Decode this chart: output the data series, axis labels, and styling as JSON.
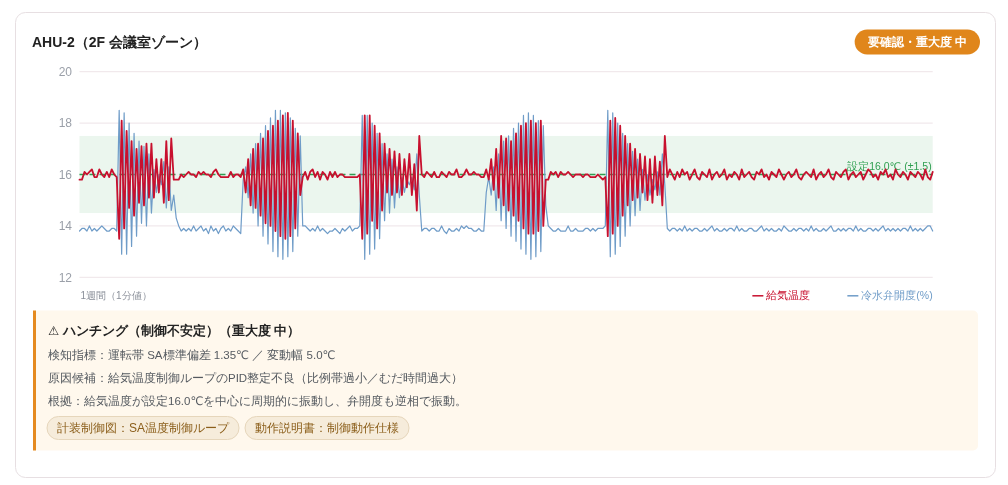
{
  "chart_data": {
    "type": "line",
    "title": "AHU-2（2F 会議室ゾーン）",
    "xlabel": "1週間（1分値）",
    "categories": [
      null,
      null,
      null,
      null,
      null,
      null,
      null,
      null,
      null,
      null,
      null,
      null,
      null,
      null,
      null,
      null,
      null,
      null,
      null,
      null,
      null,
      null,
      null,
      null,
      null,
      null,
      null,
      null,
      null,
      null,
      null,
      null,
      null,
      null,
      null,
      null,
      null,
      null,
      null,
      null,
      null,
      null,
      null,
      null,
      null,
      null,
      null,
      null,
      null,
      null,
      null,
      null,
      null,
      null,
      null,
      null,
      null,
      null,
      null,
      null,
      null,
      null,
      null,
      null,
      null,
      null,
      null,
      null,
      null,
      null,
      null,
      null,
      null,
      null,
      null,
      null,
      null,
      null,
      null,
      null,
      null,
      null,
      null,
      null,
      null,
      null,
      null,
      null,
      null,
      null,
      null,
      null,
      null,
      null,
      null,
      null,
      null,
      null,
      null,
      null,
      null,
      null,
      null,
      null,
      null,
      null,
      null,
      null,
      null,
      null,
      null,
      null,
      null,
      null,
      null,
      null,
      null,
      null,
      null,
      null,
      null,
      null,
      null,
      null,
      null,
      null,
      null,
      null,
      null,
      null,
      null,
      null,
      null,
      null,
      null,
      null,
      null,
      null,
      null,
      null,
      null,
      null,
      null,
      null,
      null,
      null,
      null,
      null,
      null,
      null,
      null,
      null,
      null,
      null,
      null,
      null,
      null,
      null,
      null,
      null,
      null,
      null,
      null,
      null,
      null,
      null,
      null,
      null,
      null,
      null,
      null,
      null,
      null,
      null,
      null,
      null,
      null,
      null,
      null,
      null,
      null,
      null,
      null,
      null,
      null,
      null,
      null,
      null,
      null,
      null,
      null,
      null,
      null,
      null,
      null,
      null,
      null,
      null,
      null,
      null,
      null,
      null,
      null,
      null,
      null,
      null,
      null,
      null,
      null,
      null,
      null,
      null,
      null,
      null,
      null,
      null,
      null,
      null,
      null,
      null,
      null,
      null,
      null,
      null,
      null,
      null,
      null,
      null,
      null,
      null,
      null,
      null,
      null,
      null,
      null,
      null,
      null,
      null,
      null,
      null,
      null,
      null,
      null,
      null,
      null,
      null,
      null,
      null,
      null,
      null,
      null,
      null,
      null,
      null,
      null,
      null,
      null,
      null,
      null,
      null,
      null,
      null,
      null,
      null,
      null,
      null,
      null,
      null,
      null,
      null,
      null,
      null,
      null,
      null,
      null,
      null,
      null,
      null,
      null,
      null,
      null,
      null,
      null,
      null,
      null,
      null,
      null,
      null,
      null,
      null,
      null,
      null,
      null,
      null,
      null,
      null,
      null,
      null,
      null,
      null,
      null,
      null,
      null,
      null,
      null,
      null,
      null,
      null,
      null,
      null,
      null,
      null,
      null,
      null,
      null,
      null,
      null,
      null,
      null,
      null,
      null,
      null,
      null,
      null,
      null,
      null,
      null,
      null,
      null,
      null,
      null,
      null,
      null,
      null,
      null,
      null,
      null,
      null,
      null,
      null,
      null,
      null,
      null,
      null,
      null
    ],
    "series": [
      {
        "name": "給気温度",
        "color": "#c8102e",
        "values": [
          15.8,
          15.8,
          16.1,
          16.0,
          16.1,
          16.2,
          15.9,
          15.9,
          16.2,
          16.0,
          15.9,
          16.1,
          15.9,
          16.2,
          16.0,
          15.9,
          13.5,
          18.1,
          13.9,
          17.7,
          14.7,
          17.3,
          14.4,
          17.0,
          14.9,
          17.1,
          14.8,
          17.2,
          15.1,
          17.2,
          15.1,
          16.6,
          15.3,
          16.6,
          14.9,
          17.3,
          15.0,
          17.4,
          15.8,
          15.8,
          15.8,
          16.0,
          15.9,
          16.0,
          16.1,
          16.0,
          16.0,
          15.9,
          16.1,
          16.0,
          16.1,
          16.0,
          16.0,
          15.9,
          16.1,
          16.2,
          16.0,
          15.9,
          15.9,
          15.9,
          15.9,
          16.1,
          15.9,
          16.0,
          16.0,
          15.9,
          16.2,
          15.3,
          16.6,
          14.8,
          17.0,
          14.7,
          17.2,
          14.4,
          17.4,
          14.1,
          17.7,
          14.0,
          17.9,
          13.8,
          18.1,
          13.6,
          18.3,
          13.5,
          18.4,
          13.6,
          18.1,
          13.9,
          17.6,
          15.2,
          15.9,
          16.1,
          15.8,
          16.1,
          16.2,
          15.9,
          16.1,
          15.8,
          16.1,
          16.0,
          15.8,
          16.1,
          15.9,
          16.1,
          15.9,
          16.0,
          16.0,
          15.9,
          15.9,
          15.9,
          15.9,
          15.9,
          15.9,
          16.0,
          13.5,
          18.3,
          13.7,
          18.3,
          14.2,
          17.9,
          13.9,
          17.6,
          14.6,
          17.2,
          15.3,
          17.0,
          15.2,
          16.9,
          15.3,
          16.8,
          15.2,
          16.6,
          15.5,
          16.8,
          15.2,
          16.4,
          14.6,
          17.5,
          16.0,
          15.9,
          16.1,
          16.0,
          15.9,
          16.1,
          15.9,
          15.9,
          16.1,
          16.0,
          15.9,
          16.1,
          16.0,
          16.0,
          16.2,
          15.9,
          15.9,
          16.0,
          16.2,
          16.0,
          16.0,
          16.1,
          16.0,
          16.0,
          15.9,
          15.9,
          16.2,
          15.8,
          16.6,
          15.4,
          17.0,
          15.1,
          17.5,
          14.8,
          17.4,
          14.6,
          17.3,
          14.4,
          17.6,
          14.2,
          17.9,
          13.9,
          18.0,
          13.7,
          18.1,
          13.7,
          18.0,
          13.8,
          18.1,
          14.0,
          15.8,
          15.8,
          16.1,
          16.0,
          16.1,
          15.9,
          16.1,
          16.0,
          16.0,
          16.1,
          16.0,
          15.9,
          16.0,
          16.0,
          16.0,
          15.9,
          16.0,
          16.0,
          15.9,
          15.9,
          15.9,
          16.0,
          15.9,
          15.8,
          15.9,
          13.6,
          18.1,
          13.7,
          18.2,
          14.0,
          17.9,
          14.4,
          17.5,
          14.8,
          17.2,
          15.0,
          17.0,
          15.1,
          16.8,
          15.3,
          16.7,
          15.0,
          16.6,
          14.9,
          16.7,
          15.2,
          16.5,
          14.8,
          17.5,
          15.9,
          16.2,
          16.0,
          15.8,
          16.1,
          15.9,
          16.2,
          16.0,
          16.1,
          15.8,
          16.0,
          16.2,
          15.9,
          15.8,
          16.1,
          16.0,
          15.9,
          16.2,
          15.8,
          16.0,
          16.1,
          15.9,
          16.0,
          16.2,
          15.8,
          16.0,
          15.9,
          16.1,
          16.0,
          15.8,
          16.2,
          15.9,
          16.0,
          16.1,
          15.9,
          15.8,
          16.1,
          16.0,
          16.2,
          15.9,
          16.0,
          15.8,
          16.1,
          16.0,
          15.9,
          16.2,
          16.0,
          15.8,
          16.0,
          16.1,
          15.9,
          16.0,
          16.2,
          15.9,
          15.8,
          16.0,
          16.1,
          16.0,
          15.9,
          16.2,
          15.8,
          16.0,
          16.1,
          15.9,
          16.0,
          16.2,
          15.9,
          15.8,
          16.1,
          16.0,
          15.9,
          16.1,
          16.2,
          15.8,
          16.0,
          16.1,
          15.9,
          16.0,
          16.1,
          15.8,
          16.0,
          16.2,
          16.1,
          15.9,
          16.0,
          15.8,
          16.1,
          16.0,
          16.2,
          15.9,
          16.0,
          15.8,
          16.2,
          16.0,
          15.9,
          16.1,
          16.0,
          15.8,
          16.1,
          16.0,
          15.9,
          16.1,
          16.0,
          15.8,
          16.2,
          15.9,
          15.8,
          16.1
        ]
      },
      {
        "name": "冷水弁開度(%)",
        "color": "#6f9cc8",
        "values": [
          13.8,
          13.9,
          13.9,
          13.8,
          14.0,
          13.8,
          13.9,
          13.8,
          13.9,
          14.0,
          13.9,
          13.8,
          13.8,
          13.9,
          13.9,
          13.8,
          18.5,
          12.9,
          18.4,
          12.9,
          18.0,
          13.2,
          17.6,
          13.6,
          17.3,
          14.1,
          17.1,
          14.0,
          16.8,
          14.5,
          16.2,
          15.3,
          16.0,
          15.6,
          16.5,
          14.7,
          16.3,
          14.6,
          15.2,
          14.3,
          14.0,
          13.8,
          13.9,
          13.8,
          13.9,
          13.8,
          14.0,
          13.8,
          13.9,
          14.0,
          13.8,
          13.9,
          13.7,
          14.0,
          13.8,
          13.9,
          13.7,
          13.9,
          14.0,
          13.8,
          13.9,
          13.8,
          14.0,
          13.9,
          13.8,
          13.7,
          15.8,
          16.3,
          15.1,
          16.8,
          14.5,
          17.2,
          14.0,
          17.6,
          13.6,
          17.9,
          13.3,
          18.2,
          13.0,
          18.5,
          12.8,
          18.5,
          12.7,
          18.4,
          12.8,
          18.2,
          13.0,
          17.8,
          13.6,
          17.5,
          14.0,
          14.0,
          13.9,
          13.8,
          13.9,
          13.8,
          14.0,
          13.8,
          13.9,
          13.8,
          13.7,
          13.8,
          13.8,
          13.9,
          13.8,
          13.7,
          13.9,
          13.8,
          13.9,
          14.0,
          13.8,
          13.9,
          13.9,
          14.0,
          18.3,
          12.7,
          18.3,
          12.9,
          18.0,
          13.1,
          17.6,
          13.5,
          17.2,
          14.2,
          16.8,
          14.5,
          16.6,
          14.7,
          16.3,
          15.1,
          15.9,
          15.3,
          15.8,
          15.6,
          15.9,
          15.4,
          16.8,
          15.2,
          13.8,
          13.9,
          13.9,
          13.8,
          13.9,
          13.9,
          13.8,
          13.8,
          14.0,
          13.8,
          13.7,
          13.9,
          13.8,
          13.8,
          13.9,
          13.8,
          14.0,
          13.9,
          14.0,
          13.9,
          13.9,
          13.8,
          13.8,
          13.9,
          13.8,
          13.8,
          15.3,
          15.9,
          15.2,
          16.3,
          14.6,
          16.8,
          14.2,
          17.3,
          13.9,
          17.5,
          13.6,
          17.8,
          13.4,
          18.0,
          13.1,
          18.3,
          12.9,
          18.4,
          12.7,
          18.3,
          12.8,
          18.1,
          13.0,
          17.9,
          14.8,
          14.0,
          13.9,
          13.8,
          13.8,
          13.9,
          13.8,
          13.8,
          13.8,
          14.0,
          13.8,
          13.8,
          13.9,
          13.8,
          13.8,
          13.8,
          13.9,
          13.9,
          13.8,
          13.9,
          13.8,
          13.9,
          13.9,
          13.9,
          14.0,
          18.5,
          12.8,
          18.4,
          12.9,
          18.0,
          13.2,
          17.6,
          13.6,
          17.2,
          14.0,
          16.9,
          14.4,
          16.6,
          14.6,
          16.2,
          15.0,
          16.0,
          15.2,
          15.8,
          15.4,
          16.1,
          15.2,
          16.8,
          15.6,
          13.9,
          13.8,
          13.9,
          13.9,
          13.8,
          13.9,
          13.8,
          14.0,
          13.8,
          13.9,
          13.8,
          13.9,
          13.9,
          13.8,
          13.8,
          13.9,
          13.8,
          13.9,
          14.0,
          13.8,
          13.9,
          13.8,
          13.8,
          13.9,
          13.8,
          13.9,
          13.9,
          13.8,
          14.0,
          13.8,
          13.9,
          13.8,
          13.8,
          13.9,
          13.9,
          13.8,
          13.8,
          13.9,
          14.0,
          13.8,
          13.9,
          13.8,
          13.9,
          13.8,
          13.8,
          13.9,
          13.8,
          14.0,
          13.9,
          13.8,
          13.8,
          13.9,
          13.8,
          13.9,
          13.9,
          13.8,
          13.9,
          13.8,
          14.0,
          13.8,
          13.9,
          13.8,
          13.8,
          13.9,
          13.8,
          13.9,
          14.0,
          13.8,
          13.8,
          13.9,
          13.8,
          13.9,
          13.8,
          13.9,
          13.9,
          13.8,
          14.0,
          13.8,
          13.9,
          13.8,
          13.8,
          13.9,
          13.9,
          13.8,
          13.9,
          13.8,
          13.9,
          14.0,
          13.8,
          13.9,
          13.8,
          13.9,
          13.8,
          13.9,
          13.8,
          13.9,
          13.9,
          13.8,
          14.0,
          13.8,
          13.9,
          13.8,
          13.9,
          13.8,
          13.9,
          14.0,
          14.0,
          13.8
        ]
      }
    ],
    "ylim": [
      12,
      20
    ],
    "yticks": [
      12,
      14,
      16,
      18,
      20
    ],
    "grid": "y",
    "tick_labels": "y",
    "legend": "bottom right",
    "bands": [
      {
        "axis": "y",
        "from": 14.5,
        "to": 17.5,
        "color": "#ebf6ee"
      }
    ],
    "ref_lines": [
      {
        "axis": "y",
        "value": 16,
        "label": "設定16.0℃ (±1.5)",
        "color": "#2e9e50",
        "line_style": "dashed"
      }
    ],
    "annotations": [
      "要確認・重大度 中",
      "⚠ ハンチング（制御不安定）（重大度 中）",
      "検知指標：運転帯 SA標準偏差 1.35℃ ／ 変動幅 5.0℃",
      "原因候補：給気温度制御ループのPID整定不良（比例帯過小／むだ時間過大）",
      "根拠：給気温度が設定16.0℃を中心に周期的に振動し、弁開度も逆相で振動。",
      "計装制御図：SA温度制御ループ",
      "動作説明書：制御動作仕様"
    ]
  }
}
